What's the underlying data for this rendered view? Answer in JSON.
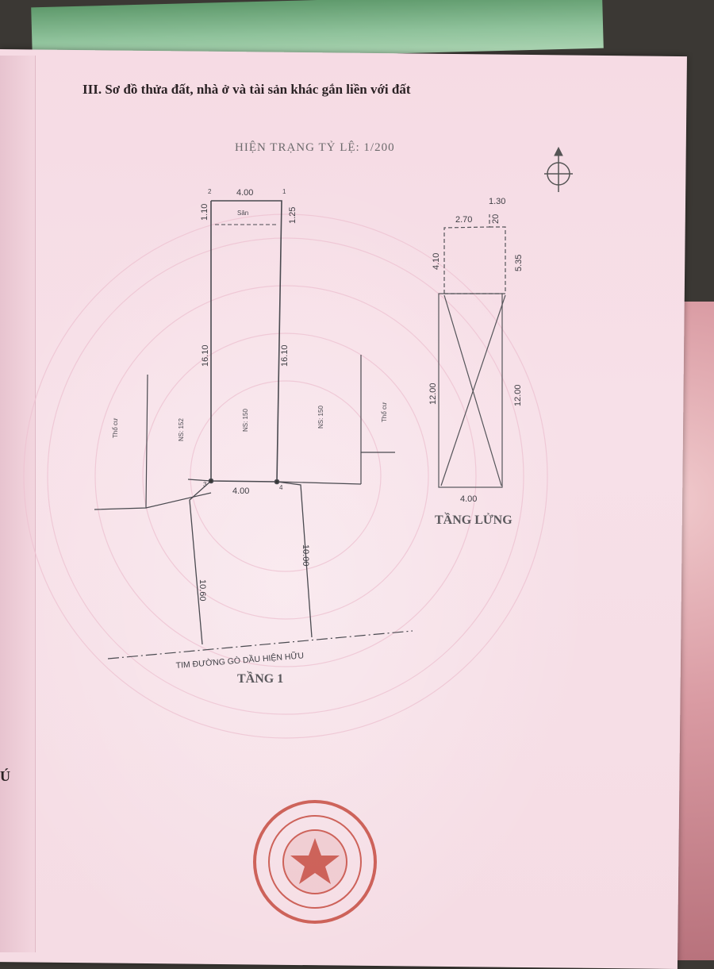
{
  "section_title": "III. Sơ đồ thửa đất, nhà ở và tài sản khác gắn liền với đất",
  "scale_title": "HIỆN TRẠNG TỶ LỆ: 1/200",
  "edge_char": "Ú",
  "ground_floor": {
    "label": "TẦNG 1",
    "top_width": "4.00",
    "bottom_width": "4.00",
    "left_setback": "1.10",
    "right_setback": "1.25",
    "left_side": "16.10",
    "right_side": "16.10",
    "front_left": "10.60",
    "front_right": "10.00",
    "yard_label": "Sân",
    "point_labels": [
      "1",
      "2",
      "3",
      "4"
    ],
    "neighbor_labels": [
      "Thổ cư",
      "NS: 152",
      "NS: 150",
      "NS: 150",
      "Thổ cư"
    ],
    "road_label": "TIM ĐƯỜNG GÒ DẦU HIỆN HỮU"
  },
  "mezzanine": {
    "label": "TẦNG LỬNG",
    "top_total": "1.30",
    "top_left": "2.70",
    "top_small": "20",
    "left_upper": "4.10",
    "right_upper": "5.35",
    "left_height": "12.00",
    "right_height": "12.00",
    "bottom_width": "4.00"
  },
  "stamp": {
    "type": "red official seal"
  },
  "colors": {
    "paper": "#f6dbe4",
    "ink": "#3e3e44",
    "stamp": "#c0392b"
  }
}
